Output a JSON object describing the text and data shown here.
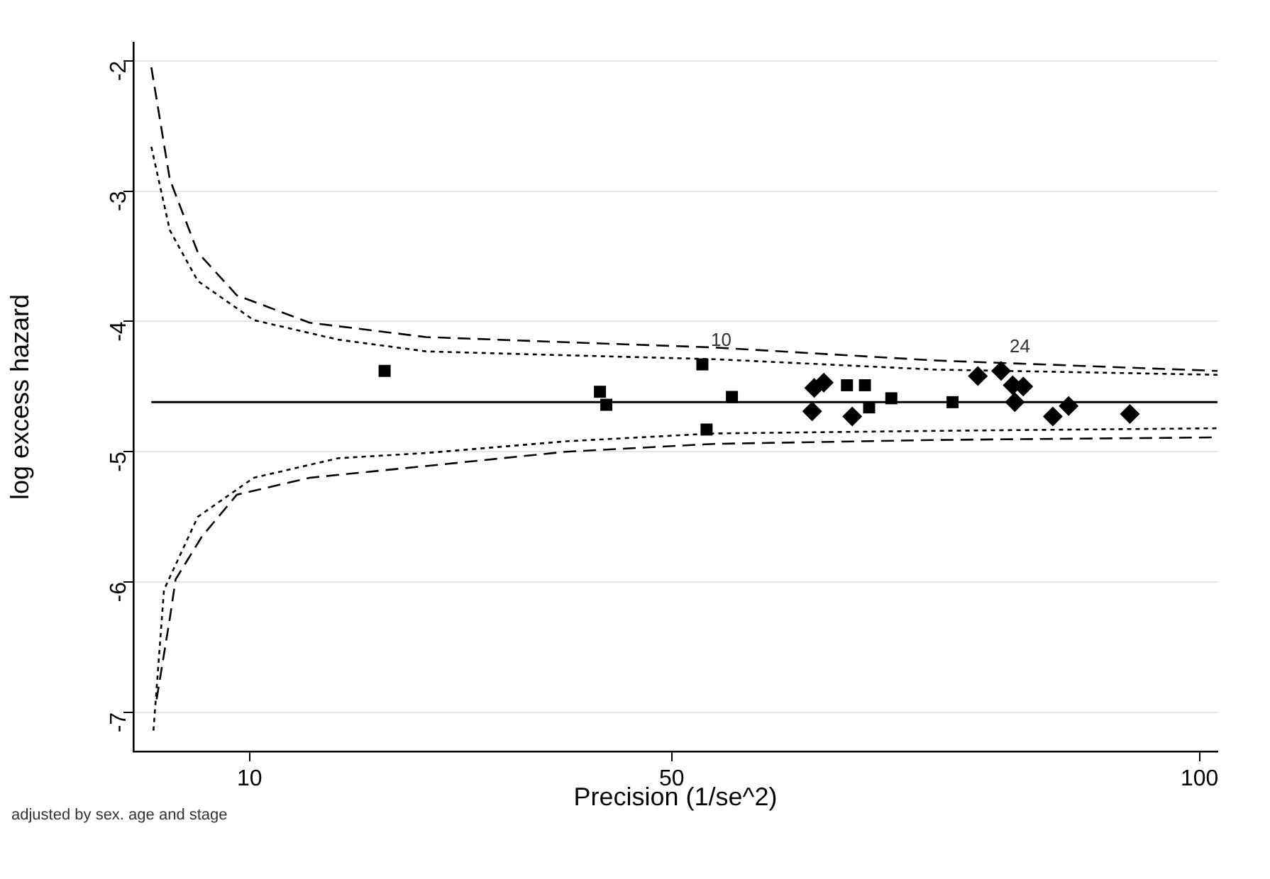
{
  "chart_data": {
    "type": "scatter",
    "xlabel": "Precision (1/se^2)",
    "ylabel": "log excess hazard",
    "xlim": [
      -1.0,
      101.7
    ],
    "xticks": [
      10,
      50,
      100
    ],
    "ylim": [
      -7.3,
      -1.86
    ],
    "yticks": [
      -2,
      -3,
      -4,
      -5,
      -6,
      -7
    ],
    "grid": "y",
    "legend": false,
    "series": [
      {
        "type": "line",
        "line_style": "dashed",
        "marker": "none",
        "color": "#000000",
        "x": [
          0.7,
          2.45,
          5.1,
          8.8,
          15.7,
          26.7,
          40,
          54,
          75,
          101.7
        ],
        "values": [
          -2.05,
          -2.91,
          -3.47,
          -3.8,
          -4.01,
          -4.12,
          -4.16,
          -4.2,
          -4.3,
          -4.38
        ]
      },
      {
        "type": "line",
        "line_style": "dotted",
        "marker": "none",
        "color": "#000000",
        "x": [
          0.7,
          2.45,
          5.1,
          10.4,
          18.4,
          26.7,
          40,
          54,
          75,
          101.7
        ],
        "values": [
          -2.66,
          -3.3,
          -3.69,
          -3.99,
          -4.14,
          -4.23,
          -4.26,
          -4.29,
          -4.37,
          -4.41
        ]
      },
      {
        "type": "line",
        "line_style": "dotted",
        "marker": "none",
        "color": "#000000",
        "x": [
          0.9,
          1.9,
          5.1,
          10.4,
          18.4,
          26.7,
          40,
          54,
          75,
          101.7
        ],
        "values": [
          -7.14,
          -6.06,
          -5.5,
          -5.2,
          -5.05,
          -5.01,
          -4.92,
          -4.86,
          -4.84,
          -4.82
        ]
      },
      {
        "type": "line",
        "line_style": "dashed",
        "marker": "none",
        "color": "#000000",
        "x": [
          1.2,
          2.45,
          3.0,
          5.5,
          8.8,
          15.7,
          26.7,
          40,
          54,
          75,
          101.7
        ],
        "values": [
          -6.9,
          -6.28,
          -5.98,
          -5.65,
          -5.33,
          -5.2,
          -5.11,
          -5.0,
          -4.94,
          -4.91,
          -4.89
        ]
      },
      {
        "type": "scatter",
        "marker": "square",
        "color": "#000000",
        "x": [
          22.8,
          43.2,
          43.8,
          52.9,
          55.7,
          53.3,
          66.6,
          68.3,
          68.7,
          70.8,
          76.6
        ],
        "values": [
          -4.38,
          -4.54,
          -4.64,
          -4.33,
          -4.58,
          -4.83,
          -4.49,
          -4.49,
          -4.66,
          -4.59,
          -4.62
        ]
      },
      {
        "type": "scatter",
        "marker": "diamond",
        "color": "#000000",
        "x": [
          63.3,
          63.5,
          64.4,
          67.1,
          79.0,
          81.2,
          82.3,
          83.3,
          82.5,
          86.1,
          87.6,
          93.4
        ],
        "values": [
          -4.69,
          -4.51,
          -4.47,
          -4.73,
          -4.42,
          -4.38,
          -4.49,
          -4.5,
          -4.62,
          -4.73,
          -4.65,
          -4.71
        ]
      }
    ],
    "ref_lines": [
      {
        "axis": "y",
        "value": -4.62,
        "color": "#000000",
        "line_style": "solid"
      }
    ],
    "annotations": [
      {
        "text": "10",
        "x": 52.9,
        "y": -4.33
      },
      {
        "text": "24",
        "x": 81.2,
        "y": -4.38
      },
      "adjusted by sex. age and stage"
    ]
  }
}
